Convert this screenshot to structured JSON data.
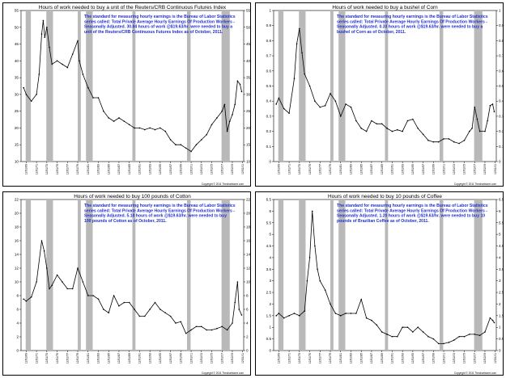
{
  "colors": {
    "line": "#000000",
    "recession": "#b9b9b9",
    "note": "#1f2fd0",
    "grid": "#d8d8d8"
  },
  "x_tick_labels": [
    "12/31/69",
    "12/31/71",
    "12/31/73",
    "12/31/75",
    "12/31/77",
    "12/31/79",
    "12/31/81",
    "12/31/83",
    "12/31/85",
    "12/31/87",
    "12/31/89",
    "12/31/91",
    "12/31/93",
    "12/31/95",
    "12/31/97",
    "12/31/99",
    "12/31/01",
    "12/31/03",
    "12/31/05",
    "12/31/07",
    "12/31/09",
    "12/31/11"
  ],
  "recessions": [
    [
      1969.9,
      1970.9
    ],
    [
      1973.9,
      1975.2
    ],
    [
      1980.0,
      1980.6
    ],
    [
      1981.6,
      1982.9
    ],
    [
      1990.6,
      1991.2
    ],
    [
      2001.2,
      2001.9
    ],
    [
      2007.9,
      2009.5
    ]
  ],
  "copyright": "Copyright © 2011 Thechartstore.com",
  "chart_data": [
    {
      "type": "line",
      "title": "Hours of work needed to buy a unit of the Reuters/CRB Continuous Futures Index",
      "note": [
        "The standard for measuring hourly earnings is the Bureau of Labor Statistics",
        "series called:  Total Private Average Hourly Earnings Of Production Workers -",
        "Seasonally Adjusted.  30.84 hours of work @$19.63/hr. were needed to buy a",
        "unit of the Reuters/CRB Continuous Futures Index as of October, 2011."
      ],
      "ylim": [
        10,
        55
      ],
      "y_ticks": [
        10,
        15,
        20,
        25,
        30,
        35,
        40,
        45,
        50,
        55
      ],
      "x": [
        1969.5,
        1970,
        1971,
        1972,
        1972.5,
        1973,
        1973.3,
        1973.6,
        1974,
        1974.5,
        1975,
        1976,
        1977,
        1978,
        1979,
        1980,
        1980.3,
        1981,
        1982,
        1983,
        1984,
        1985,
        1986,
        1987,
        1988,
        1989,
        1990,
        1991,
        1992,
        1993,
        1994,
        1995,
        1996,
        1997,
        1998,
        1999,
        2000,
        2001,
        2002,
        2003,
        2004,
        2005,
        2006,
        2007,
        2008,
        2008.5,
        2009,
        2009.5,
        2010,
        2010.5,
        2011,
        2011.5,
        2011.8
      ],
      "values": [
        32,
        30,
        28,
        30,
        36,
        48,
        52,
        47,
        50,
        44,
        39,
        40,
        39,
        38,
        42,
        46,
        40,
        36,
        32,
        29,
        29,
        25,
        23,
        22,
        23,
        22,
        21,
        20,
        20,
        19.5,
        20,
        19.5,
        20,
        19,
        16.5,
        15,
        15,
        14,
        13,
        15,
        16.5,
        18,
        21,
        23,
        25,
        27,
        19,
        22,
        24,
        27,
        34,
        33,
        30.84
      ]
    },
    {
      "type": "line",
      "title": "Hours of work needed to buy a bushel of Corn",
      "note": [
        "The standard for measuring hourly earnings is the Bureau of Labor Statistics",
        "series called:  Total Private Average Hourly Earnings Of Production Workers -",
        "Seasonally Adjusted.  0.33 hours of work @$19.63/hr. were needed to buy a",
        "bushel of Corn as of October, 2011."
      ],
      "ylim": [
        0.0,
        1.0
      ],
      "y_ticks": [
        0.0,
        0.1,
        0.2,
        0.3,
        0.4,
        0.5,
        0.6,
        0.7,
        0.8,
        0.9,
        1.0
      ],
      "x": [
        1969.5,
        1970,
        1971,
        1972,
        1973,
        1973.5,
        1974,
        1974.5,
        1975,
        1976,
        1977,
        1978,
        1979,
        1980,
        1981,
        1982,
        1983,
        1984,
        1985,
        1986,
        1987,
        1988,
        1989,
        1990,
        1991,
        1992,
        1993,
        1994,
        1995,
        1996,
        1997,
        1998,
        1999,
        2000,
        2001,
        2002,
        2003,
        2004,
        2005,
        2006,
        2007,
        2007.5,
        2008,
        2008.5,
        2009,
        2010,
        2010.5,
        2011,
        2011.5,
        2011.8
      ],
      "values": [
        0.38,
        0.42,
        0.35,
        0.32,
        0.55,
        0.78,
        0.88,
        0.72,
        0.58,
        0.5,
        0.4,
        0.36,
        0.37,
        0.45,
        0.4,
        0.3,
        0.38,
        0.36,
        0.27,
        0.22,
        0.2,
        0.27,
        0.25,
        0.25,
        0.22,
        0.2,
        0.21,
        0.2,
        0.27,
        0.28,
        0.22,
        0.18,
        0.14,
        0.13,
        0.13,
        0.15,
        0.15,
        0.13,
        0.12,
        0.14,
        0.2,
        0.22,
        0.36,
        0.28,
        0.2,
        0.2,
        0.27,
        0.37,
        0.38,
        0.33
      ]
    },
    {
      "type": "line",
      "title": "Hours of work needed to buy 100 pounds of Cotton",
      "note": [
        "The standard for measuring hourly earnings is the Bureau of Labor Statistics",
        "series called:  Total Private Average Hourly Earnings Of Production Workers -",
        "Seasonally Adjusted.  5.18 hours of work @$19.63/hr. were needed to buy",
        "100 pounds of Cotton as of October, 2011."
      ],
      "ylim": [
        0,
        22
      ],
      "y_ticks": [
        0,
        2,
        4,
        6,
        8,
        10,
        12,
        14,
        16,
        18,
        20,
        22
      ],
      "x": [
        1969.5,
        1970,
        1971,
        1972,
        1973,
        1973.5,
        1974,
        1974.5,
        1975,
        1976,
        1977,
        1978,
        1979,
        1980,
        1981,
        1982,
        1983,
        1984,
        1985,
        1986,
        1987,
        1988,
        1989,
        1990,
        1991,
        1992,
        1993,
        1994,
        1995,
        1996,
        1997,
        1998,
        1999,
        2000,
        2001,
        2002,
        2003,
        2004,
        2005,
        2006,
        2007,
        2008,
        2009,
        2010,
        2010.5,
        2011,
        2011.3,
        2011.8
      ],
      "values": [
        7.5,
        7.2,
        7.8,
        10,
        16,
        14.5,
        12,
        9,
        9.5,
        11,
        10,
        9,
        9,
        12,
        10,
        8,
        8,
        7.5,
        6,
        5.5,
        8,
        6.5,
        7,
        7,
        6,
        5,
        5,
        6,
        7,
        6,
        5.5,
        5,
        4,
        4.2,
        2.5,
        3,
        3.5,
        3.5,
        3,
        3,
        3.2,
        3.5,
        3,
        4,
        7,
        10,
        6,
        5.18
      ]
    },
    {
      "type": "line",
      "title": "Hours of work needed to buy 10 pounds of Coffee",
      "note": [
        "The standard for measuring hourly earnings is the Bureau of Labor Statistics",
        "series called:  Total Private Average Hourly Earnings Of Production Workers -",
        "Seasonally Adjusted.  1.20 hours of work @$19.63/hr. were needed to buy 10",
        "pounds of Brazilian Coffee as of October, 2011."
      ],
      "ylim": [
        0.0,
        6.5
      ],
      "y_ticks": [
        0.0,
        0.5,
        1.0,
        1.5,
        2.0,
        2.5,
        3.0,
        3.5,
        4.0,
        4.5,
        5.0,
        5.5,
        6.0,
        6.5
      ],
      "x": [
        1969.5,
        1970,
        1971,
        1972,
        1973,
        1974,
        1975,
        1975.5,
        1976,
        1976.5,
        1977,
        1977.5,
        1978,
        1979,
        1980,
        1981,
        1982,
        1983,
        1984,
        1985,
        1986,
        1987,
        1988,
        1989,
        1990,
        1991,
        1992,
        1993,
        1994,
        1995,
        1996,
        1997,
        1998,
        1999,
        2000,
        2001,
        2002,
        2003,
        2004,
        2005,
        2006,
        2007,
        2008,
        2009,
        2010,
        2011,
        2011.5,
        2011.8
      ],
      "values": [
        1.5,
        1.6,
        1.4,
        1.5,
        1.6,
        1.5,
        1.7,
        3.0,
        4.0,
        6.0,
        4.5,
        3.5,
        3.0,
        2.6,
        2.0,
        1.6,
        1.5,
        1.6,
        1.6,
        1.6,
        2.2,
        1.4,
        1.3,
        1.1,
        0.8,
        0.7,
        0.6,
        0.6,
        1.0,
        1.0,
        0.8,
        1.0,
        0.8,
        0.6,
        0.5,
        0.3,
        0.3,
        0.35,
        0.45,
        0.6,
        0.6,
        0.7,
        0.7,
        0.65,
        0.8,
        1.4,
        1.3,
        1.2
      ]
    }
  ]
}
